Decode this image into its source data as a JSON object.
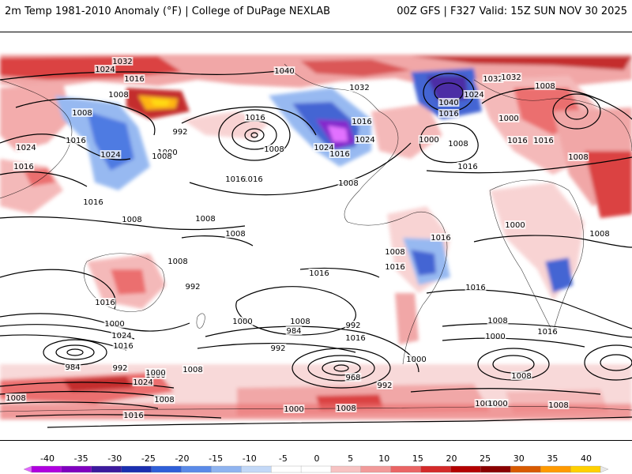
{
  "header": {
    "left_title": "2m Temp 1981-2010 Anomaly (°F) | College of DuPage NEXLAB",
    "right_title": "00Z GFS | F327 Valid: 15Z SUN NOV 30 2025"
  },
  "map": {
    "projection": "global equirectangular (Pacific-centered)",
    "field": "2m temperature anomaly shaded",
    "contours": "sea-level pressure isobars (hPa)",
    "isobar_labels": [
      {
        "text": "1032"
      },
      {
        "text": "1024"
      },
      {
        "text": "1016"
      },
      {
        "text": "1040"
      },
      {
        "text": "1008"
      },
      {
        "text": "1008"
      },
      {
        "text": "1016"
      },
      {
        "text": "1000"
      },
      {
        "text": "992"
      },
      {
        "text": "1024"
      },
      {
        "text": "1024"
      },
      {
        "text": "1008"
      },
      {
        "text": "1016"
      },
      {
        "text": "1016"
      },
      {
        "text": "1016"
      },
      {
        "text": "1008"
      },
      {
        "text": "1032"
      },
      {
        "text": "1016"
      },
      {
        "text": "1024"
      },
      {
        "text": "1024"
      },
      {
        "text": "1016"
      },
      {
        "text": "1000"
      },
      {
        "text": "1008"
      },
      {
        "text": "1032"
      },
      {
        "text": "1024"
      },
      {
        "text": "1040"
      },
      {
        "text": "1016"
      },
      {
        "text": "1032"
      },
      {
        "text": "1008"
      },
      {
        "text": "1000"
      },
      {
        "text": "1016"
      },
      {
        "text": "1016"
      },
      {
        "text": "1008"
      },
      {
        "text": "1016"
      },
      {
        "text": "1016"
      },
      {
        "text": "1016"
      },
      {
        "text": "1008"
      },
      {
        "text": "1008"
      },
      {
        "text": "1008"
      },
      {
        "text": "1008"
      },
      {
        "text": "1008"
      },
      {
        "text": "1008"
      },
      {
        "text": "1016"
      },
      {
        "text": "1016"
      },
      {
        "text": "1016"
      },
      {
        "text": "1008"
      },
      {
        "text": "1000"
      },
      {
        "text": "992"
      },
      {
        "text": "1016"
      },
      {
        "text": "1000"
      },
      {
        "text": "1024"
      },
      {
        "text": "1016"
      },
      {
        "text": "1008"
      },
      {
        "text": "984"
      },
      {
        "text": "992"
      },
      {
        "text": "1016"
      },
      {
        "text": "1000"
      },
      {
        "text": "968"
      },
      {
        "text": "992"
      },
      {
        "text": "1000"
      },
      {
        "text": "1008"
      },
      {
        "text": "1000"
      },
      {
        "text": "1008"
      },
      {
        "text": "1000"
      },
      {
        "text": "1016"
      },
      {
        "text": "1000"
      },
      {
        "text": "992"
      },
      {
        "text": "984"
      },
      {
        "text": "992"
      },
      {
        "text": "1000"
      },
      {
        "text": "1008"
      },
      {
        "text": "1024"
      },
      {
        "text": "1016"
      },
      {
        "text": "1008"
      },
      {
        "text": "1016"
      },
      {
        "text": "1000"
      },
      {
        "text": "1000"
      },
      {
        "text": "1008"
      },
      {
        "text": "1008"
      },
      {
        "text": "1008"
      }
    ]
  },
  "colorbar": {
    "ticks": [
      "-40",
      "-35",
      "-30",
      "-25",
      "-20",
      "-15",
      "-10",
      "-5",
      "0",
      "5",
      "10",
      "15",
      "20",
      "25",
      "30",
      "35",
      "40"
    ],
    "colors": [
      "#e066ff",
      "#b000e0",
      "#8000c0",
      "#3c1a9e",
      "#1a2fb0",
      "#2f5fd8",
      "#5a8ae8",
      "#8fb4f0",
      "#c3d8f7",
      "#ffffff",
      "#ffffff",
      "#f7c3c3",
      "#f29a9a",
      "#ea6464",
      "#d42a2a",
      "#b40000",
      "#8a0000",
      "#d85a00",
      "#ff9a00",
      "#ffd000",
      "#e8e8e8"
    ]
  }
}
